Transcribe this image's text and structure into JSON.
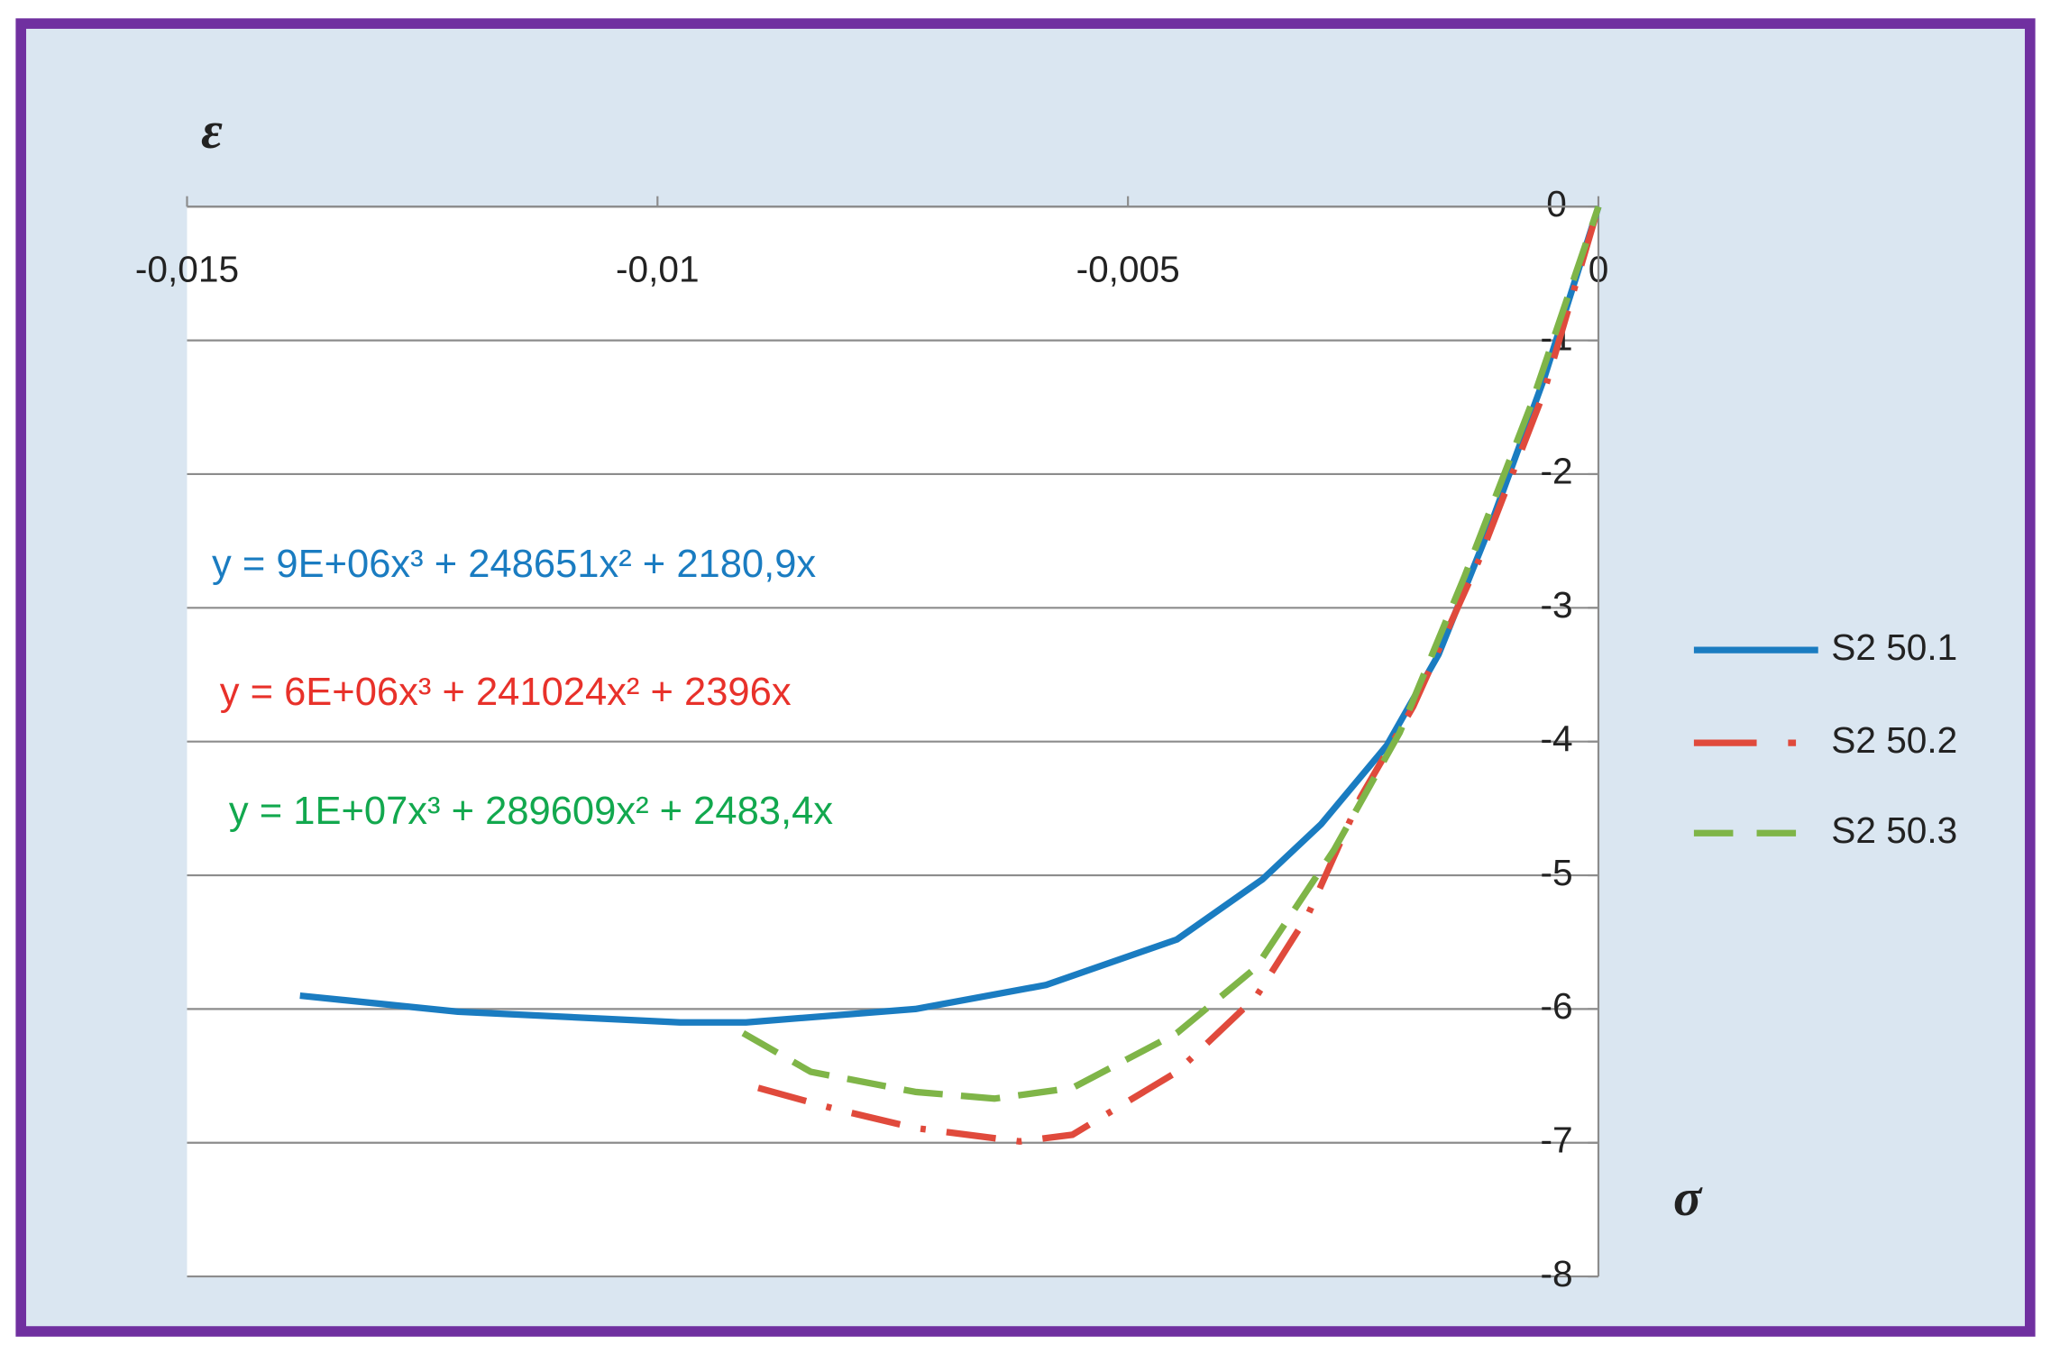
{
  "chart_data": {
    "type": "line",
    "y_axis_label": "ε",
    "x_axis_label": "σ",
    "xlim": [
      -0.015,
      0
    ],
    "ylim": [
      -8,
      0
    ],
    "xticks": [
      {
        "value": -0.015,
        "label": "-0,015"
      },
      {
        "value": -0.01,
        "label": "-0,01"
      },
      {
        "value": -0.005,
        "label": "-0,005"
      },
      0
    ],
    "yticks": [
      0,
      -1,
      -2,
      -3,
      -4,
      -5,
      -6,
      -7,
      -8
    ],
    "grid": true,
    "legend": "right",
    "annotations": [
      {
        "text": "y = 9E+06x³ + 248651x² + 2180,9x",
        "color": "#1a7cc1"
      },
      {
        "text": "y = 6E+06x³ + 241024x² + 2396x",
        "color": "#e8312a"
      },
      {
        "text": "y = 1E+07x³ + 289609x² + 2483,4x",
        "color": "#12a84e"
      }
    ],
    "series": [
      {
        "name": "S2 50.1",
        "color": "#1a7cc1",
        "style": "solid",
        "x": [
          -0.0138,
          -0.01212,
          -0.00976,
          -0.00906,
          -0.00726,
          -0.00587,
          -0.00448,
          -0.00357,
          -0.00295,
          -0.00225,
          -0.0017,
          -0.00114,
          -0.00058,
          0
        ],
        "values": [
          -5.9,
          -6.02,
          -6.1,
          -6.1,
          -6.0,
          -5.82,
          -5.48,
          -5.03,
          -4.62,
          -4.03,
          -3.35,
          -2.37,
          -1.29,
          0
        ]
      },
      {
        "name": "S2 50.2",
        "color": "#e04a3c",
        "style": "dashdot",
        "x": [
          -0.00893,
          -0.0081,
          -0.00726,
          -0.00615,
          -0.00559,
          -0.00448,
          -0.00364,
          -0.00309,
          -0.00253,
          -0.00197,
          -0.00128,
          -0.00058,
          0
        ],
        "values": [
          -6.59,
          -6.75,
          -6.89,
          -6.99,
          -6.94,
          -6.47,
          -5.91,
          -5.3,
          -4.42,
          -3.74,
          -2.66,
          -1.39,
          0
        ]
      },
      {
        "name": "S2 50.3",
        "color": "#7fb548",
        "style": "dashed",
        "x": [
          -0.00909,
          -0.00837,
          -0.00726,
          -0.00642,
          -0.00559,
          -0.00448,
          -0.00364,
          -0.00281,
          -0.00211,
          -0.00142,
          -0.00072,
          0
        ],
        "values": [
          -6.18,
          -6.47,
          -6.62,
          -6.67,
          -6.59,
          -6.18,
          -5.69,
          -4.81,
          -3.93,
          -2.76,
          -1.49,
          0
        ]
      }
    ]
  }
}
